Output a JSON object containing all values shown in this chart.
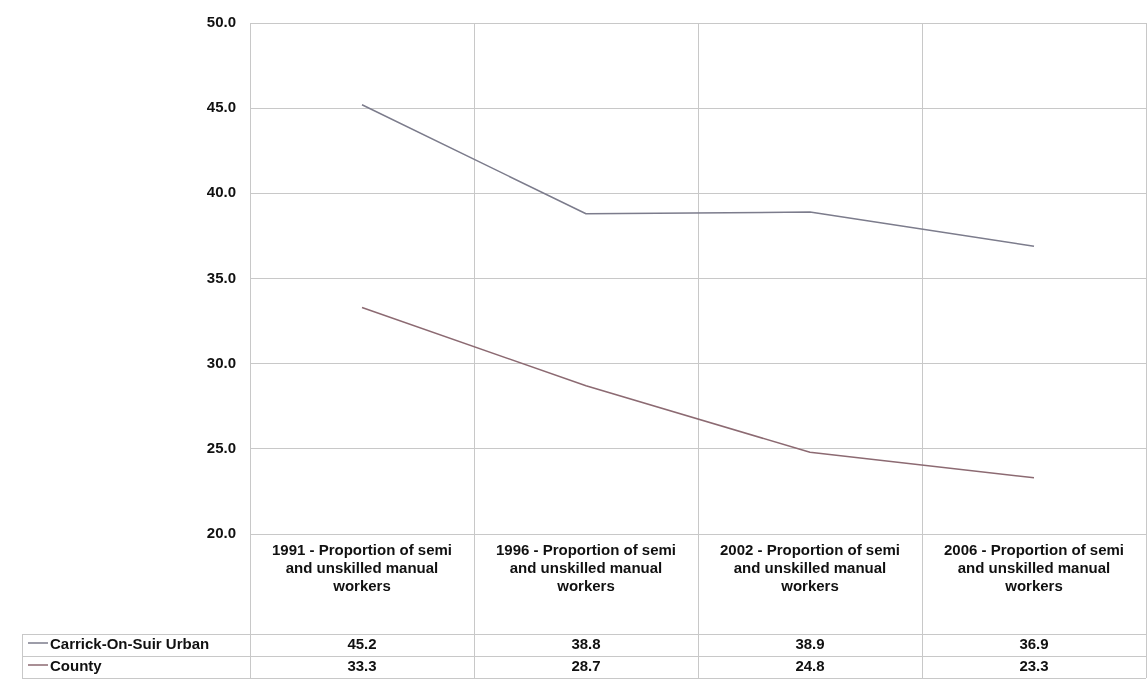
{
  "chart_data": {
    "type": "line",
    "categories": [
      "1991 - Proportion of semi and unskilled manual workers",
      "1996 - Proportion of semi and unskilled manual workers",
      "2002 - Proportion of semi and unskilled manual workers",
      "2006 - Proportion of semi and unskilled manual workers"
    ],
    "series": [
      {
        "name": "Carrick-On-Suir Urban",
        "color": "#7c7c8c",
        "values": [
          45.2,
          38.8,
          38.9,
          36.9
        ]
      },
      {
        "name": "County",
        "color": "#8c6a72",
        "values": [
          33.3,
          28.7,
          24.8,
          23.3
        ]
      }
    ],
    "ylim": [
      20,
      50
    ],
    "yticks": [
      {
        "value": 20,
        "label": "20.0"
      },
      {
        "value": 25,
        "label": "25.0"
      },
      {
        "value": 30,
        "label": "30.0"
      },
      {
        "value": 35,
        "label": "35.0"
      },
      {
        "value": 40,
        "label": "40.0"
      },
      {
        "value": 45,
        "label": "45.0"
      },
      {
        "value": 50,
        "label": "50.0"
      }
    ],
    "grid": true,
    "legend": "bottom left",
    "data_labels": true,
    "marker": "none",
    "line_style": "solid"
  }
}
